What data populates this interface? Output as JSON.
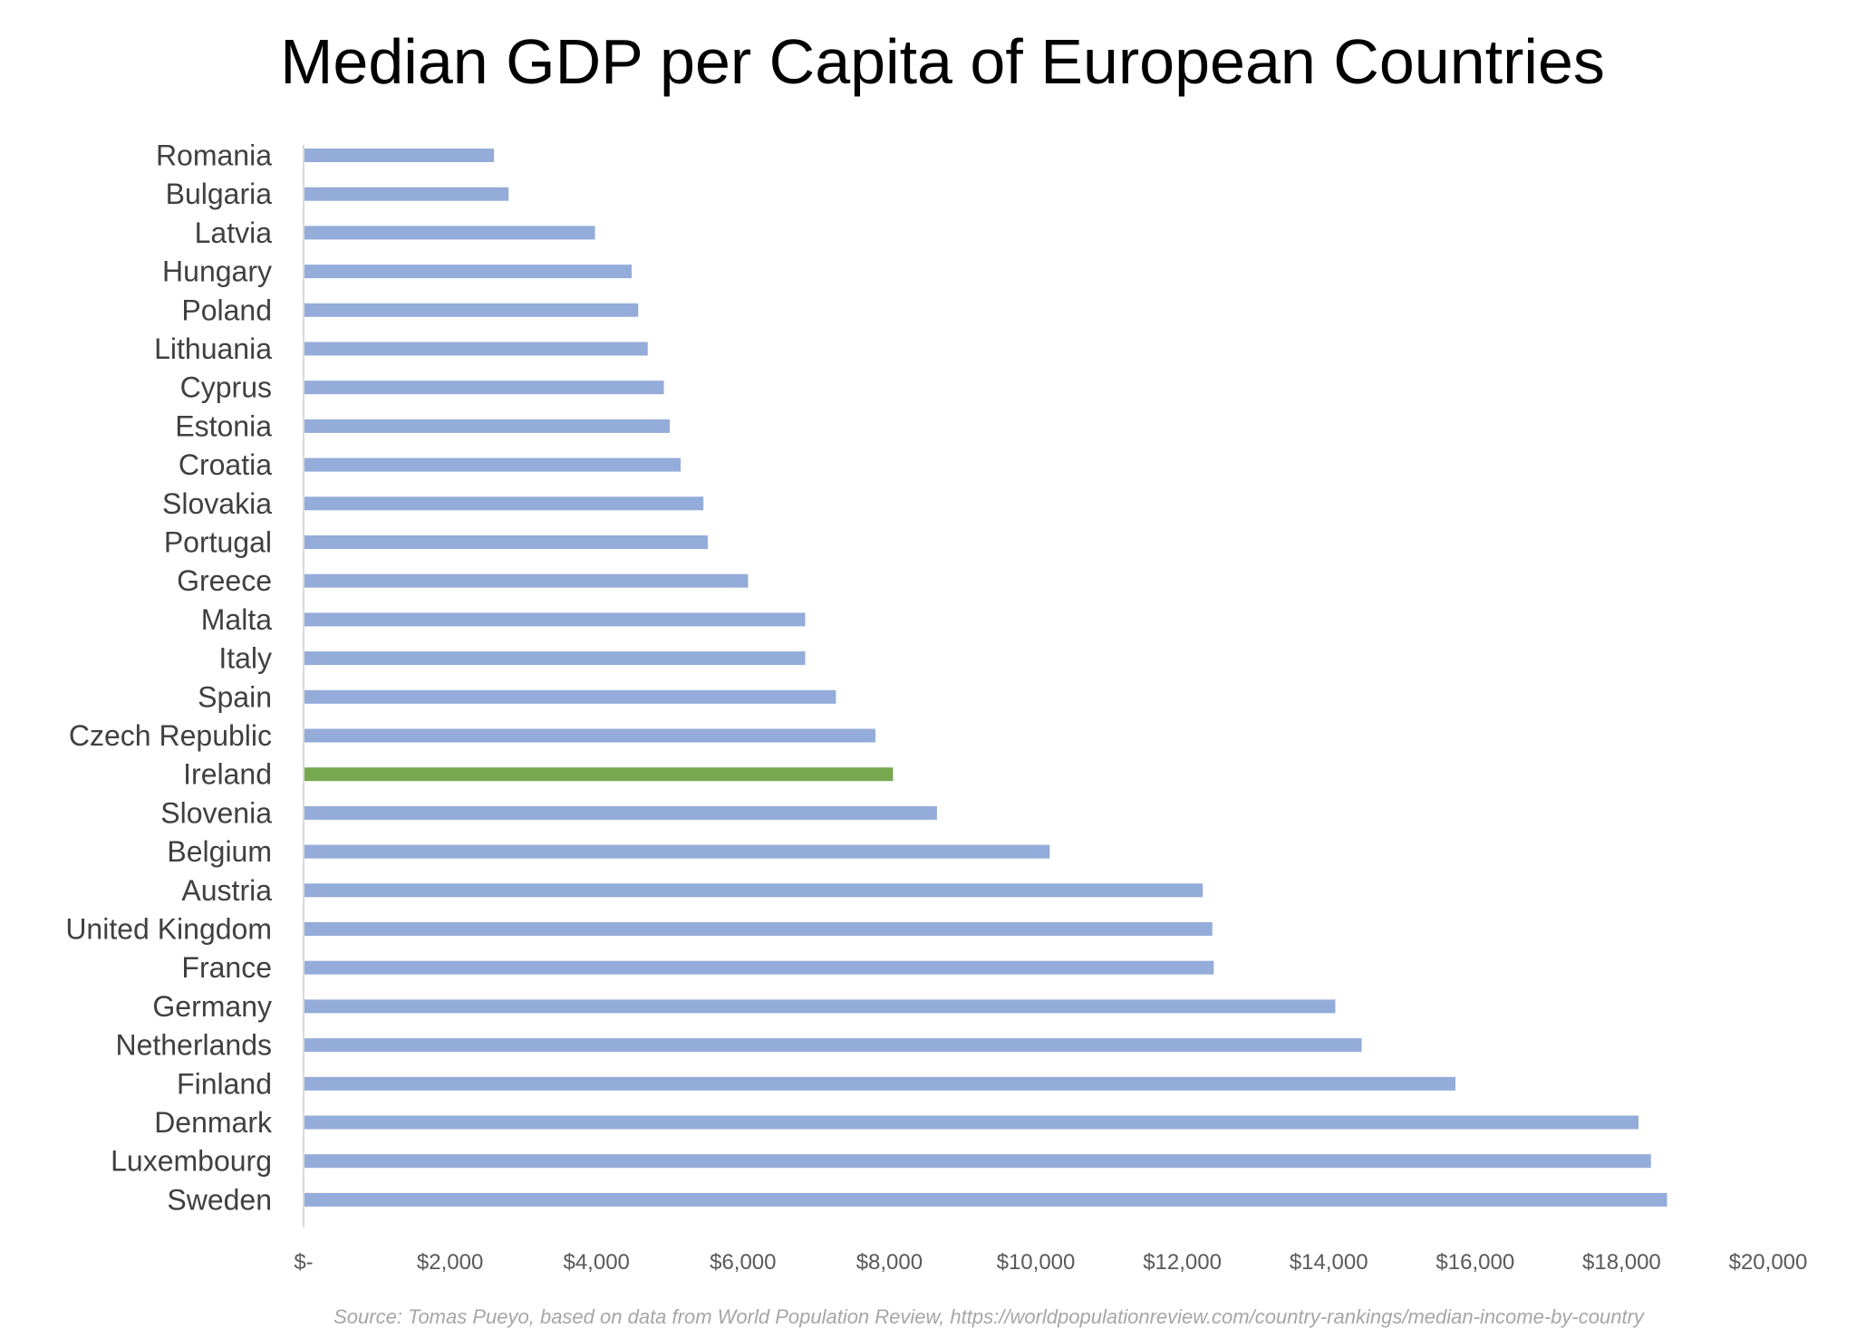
{
  "chart_data": {
    "type": "bar",
    "orientation": "horizontal",
    "title": "Median GDP per Capita of European Countries",
    "xlabel": "",
    "ylabel": "",
    "source": "Source: Tomas Pueyo, based on data from World Population Review, https://worldpopulationreview.com/country-rankings/median-income-by-country",
    "categories": [
      "Romania",
      "Bulgaria",
      "Latvia",
      "Hungary",
      "Poland",
      "Lithuania",
      "Cyprus",
      "Estonia",
      "Croatia",
      "Slovakia",
      "Portugal",
      "Greece",
      "Malta",
      "Italy",
      "Spain",
      "Czech Republic",
      "Ireland",
      "Slovenia",
      "Belgium",
      "Austria",
      "United Kingdom",
      "France",
      "Germany",
      "Netherlands",
      "Finland",
      "Denmark",
      "Luxembourg",
      "Sweden"
    ],
    "values": [
      2600,
      2800,
      3980,
      4480,
      4570,
      4700,
      4920,
      5000,
      5150,
      5460,
      5520,
      6070,
      6850,
      6850,
      7270,
      7810,
      8050,
      8650,
      10190,
      12280,
      12410,
      12430,
      14090,
      14450,
      15730,
      18230,
      18400,
      18620
    ],
    "highlight": "Ireland",
    "colors": {
      "bar": "#94ACDA",
      "highlight": "#76A84F",
      "axis": "#D9D9D9"
    },
    "xlim": [
      0,
      20000
    ],
    "x_ticks": [
      0,
      2000,
      4000,
      6000,
      8000,
      10000,
      12000,
      14000,
      16000,
      18000,
      20000
    ],
    "x_tick_labels": [
      "$-",
      "$2,000",
      "$4,000",
      "$6,000",
      "$8,000",
      "$10,000",
      "$12,000",
      "$14,000",
      "$16,000",
      "$18,000",
      "$20,000"
    ],
    "grid": false,
    "legend": "none"
  }
}
